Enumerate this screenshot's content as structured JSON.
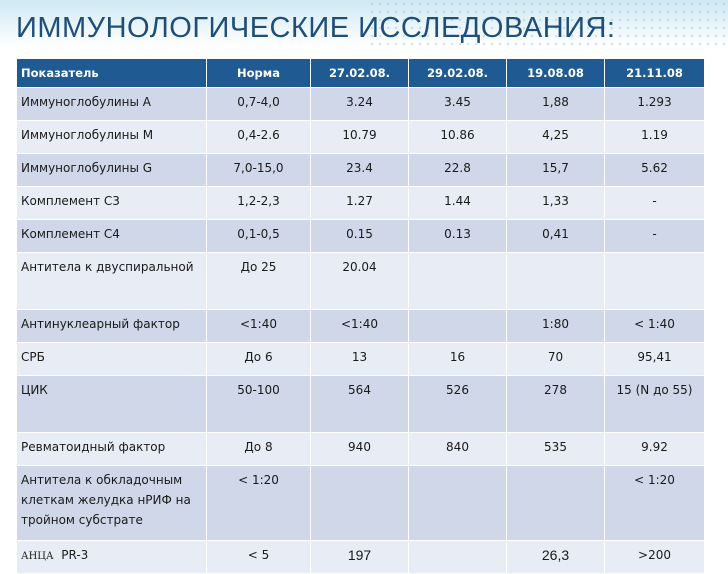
{
  "title": "ИММУНОЛОГИЧЕСКИЕ ИССЛЕДОВАНИЯ:",
  "headers": [
    "Показатель",
    "Норма",
    "27.02.08.",
    "29.02.08.",
    "19.08.08",
    "21.11.08"
  ],
  "rows": [
    {
      "label": "Иммуноглобулины А",
      "norm": "0,7-4,0",
      "v1": "3.24",
      "v2": "3.45",
      "v3": "1,88",
      "v4": "1.293"
    },
    {
      "label": "Иммуноглобулины М",
      "norm": "0,4-2.6",
      "v1": "10.79",
      "v2": "10.86",
      "v3": "4,25",
      "v4": "1.19"
    },
    {
      "label": "Иммуноглобулины G",
      "norm": "7,0-15,0",
      "v1": "23.4",
      "v2": "22.8",
      "v3": "15,7",
      "v4": "5.62"
    },
    {
      "label": "Комплемент С3",
      "norm": "1,2-2,3",
      "v1": "1.27",
      "v2": "1.44",
      "v3": "1,33",
      "v4": "-"
    },
    {
      "label": "Комплемент С4",
      "norm": "0,1-0,5",
      "v1": "0.15",
      "v2": "0.13",
      "v3": "0,41",
      "v4": "-"
    },
    {
      "label": "Антитела к двуспиральной",
      "norm": "До 25",
      "v1": "20.04",
      "v2": "",
      "v3": "",
      "v4": ""
    },
    {
      "label": "Антинуклеарный фактор",
      "norm": "<1:40",
      "v1": "<1:40",
      "v2": "",
      "v3": "1:80",
      "v4": "< 1:40"
    },
    {
      "label": "СРБ",
      "norm": "До 6",
      "v1": "13",
      "v2": "16",
      "v3": "70",
      "v4": "95,41"
    },
    {
      "label": "ЦИК",
      "norm": "50-100",
      "v1": "564",
      "v2": "526",
      "v3": "278",
      "v4": "15 (N до 55)"
    },
    {
      "label": "Ревматоидный фактор",
      "norm": "До 8",
      "v1": "940",
      "v2": "840",
      "v3": "535",
      "v4": "9.92"
    },
    {
      "label": "Антитела к обкладочным клеткам желудка нРИФ на тройном субстрате",
      "norm": "< 1:20",
      "v1": "",
      "v2": "",
      "v3": "",
      "v4": "< 1:20"
    },
    {
      "label_a": "АНЦА",
      "label_b": "PR-3",
      "norm": "< 5",
      "v1": "197",
      "v2": "",
      "v3": "26,3",
      "v4": ">200"
    }
  ]
}
